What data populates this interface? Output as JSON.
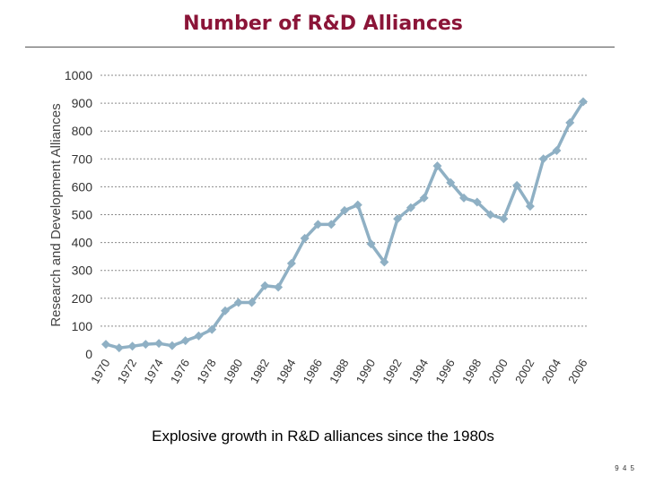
{
  "slide": {
    "title": "Number of R&D Alliances",
    "caption": "Explosive growth in R&D alliances since the 1980s",
    "page_number": "9 4 5"
  },
  "colors": {
    "title": "#8b1538",
    "line": "#8fb0c4",
    "grid": "#8a8a8a",
    "text": "#333333"
  },
  "chart_data": {
    "type": "line",
    "title": "",
    "xlabel": "",
    "ylabel": "Research and Development Alliances",
    "ylim": [
      0,
      1000
    ],
    "yticks": [
      0,
      100,
      200,
      300,
      400,
      500,
      600,
      700,
      800,
      900,
      1000
    ],
    "xticks": [
      "1970",
      "1972",
      "1974",
      "1976",
      "1978",
      "1980",
      "1982",
      "1984",
      "1986",
      "1988",
      "1990",
      "1992",
      "1994",
      "1996",
      "1998",
      "2000",
      "2002",
      "2004",
      "2006"
    ],
    "grid": true,
    "marker": "diamond",
    "x": [
      1970,
      1971,
      1972,
      1973,
      1974,
      1975,
      1976,
      1977,
      1978,
      1979,
      1980,
      1981,
      1982,
      1983,
      1984,
      1985,
      1986,
      1987,
      1988,
      1989,
      1990,
      1991,
      1992,
      1993,
      1994,
      1995,
      1996,
      1997,
      1998,
      1999,
      2000,
      2001,
      2002,
      2003,
      2004,
      2005,
      2006
    ],
    "values": [
      35,
      22,
      28,
      35,
      38,
      30,
      48,
      65,
      88,
      155,
      185,
      185,
      245,
      240,
      325,
      415,
      465,
      465,
      515,
      535,
      395,
      330,
      485,
      525,
      560,
      675,
      615,
      560,
      545,
      500,
      485,
      605,
      530,
      700,
      730,
      830,
      905
    ]
  }
}
